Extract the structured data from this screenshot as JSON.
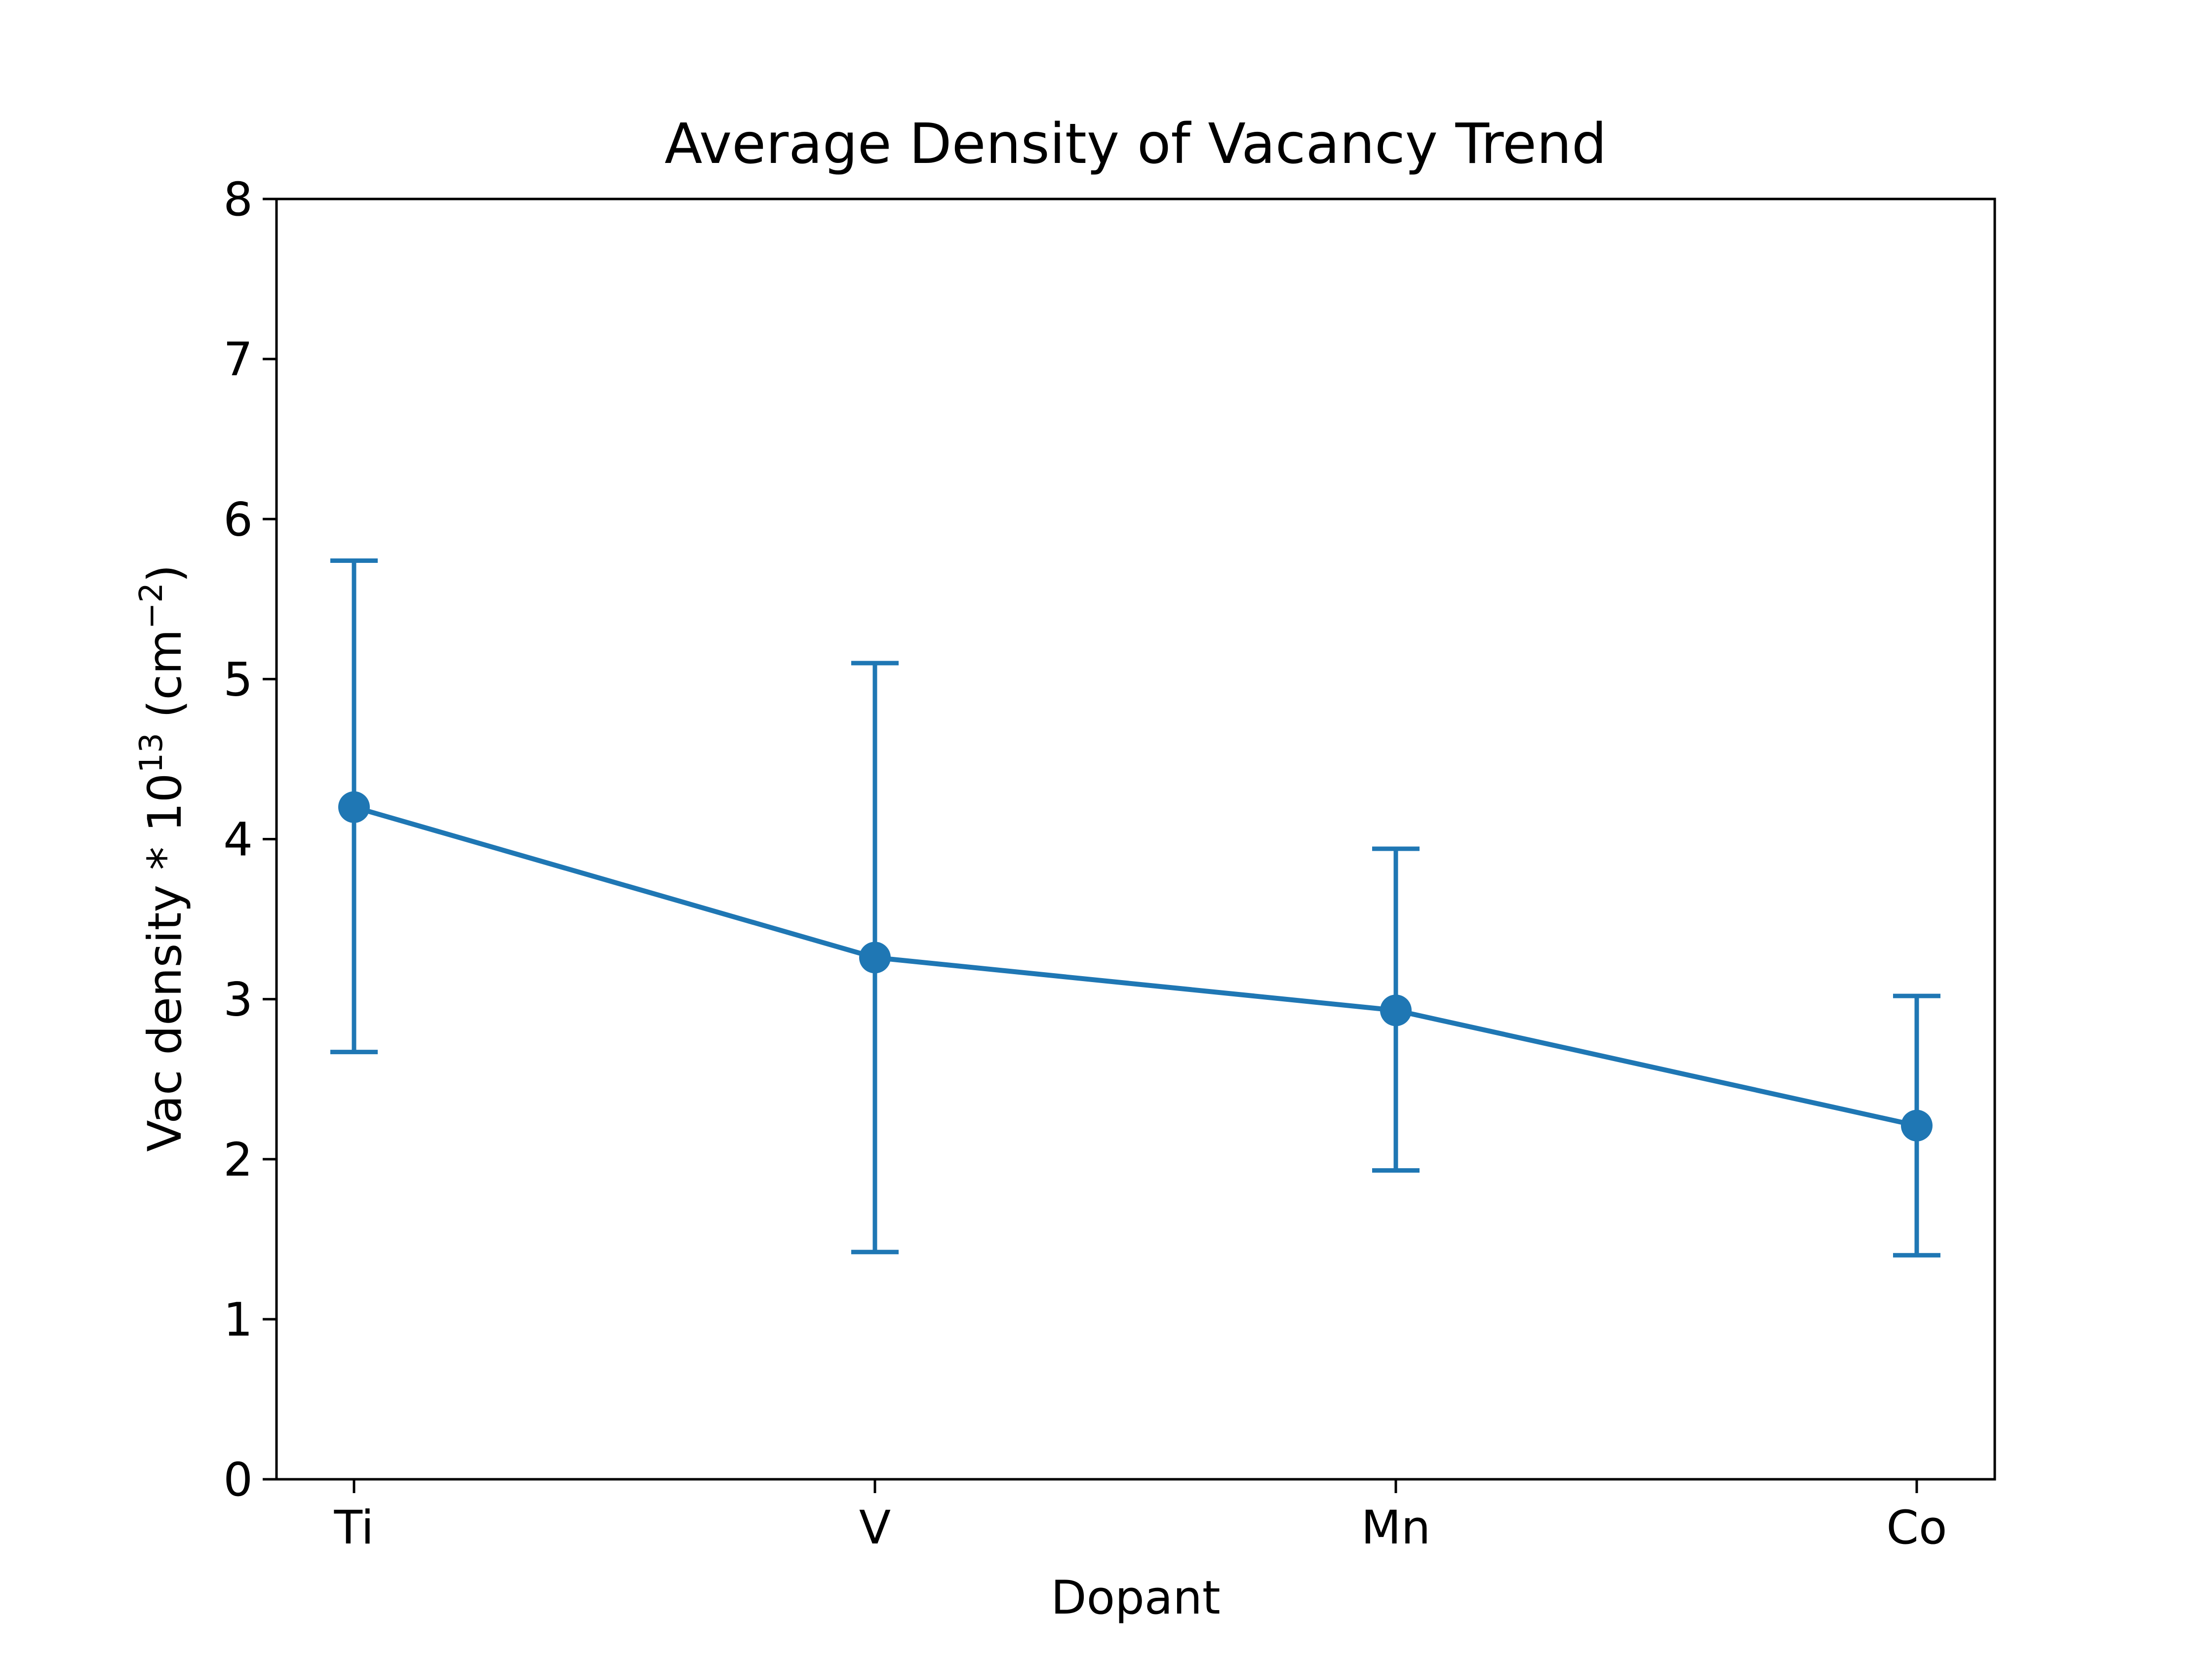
{
  "chart_data": {
    "type": "line",
    "title": "Average Density of Vacancy Trend",
    "xlabel": "Dopant",
    "ylabel_main": "Vac density * 10",
    "ylabel_exp": "13",
    "ylabel_unit_open": " (cm",
    "ylabel_unit_exp": "−2",
    "ylabel_unit_close": ")",
    "categories": [
      "Ti",
      "V",
      "Mn",
      "Co"
    ],
    "series": [
      {
        "values": [
          4.2,
          3.26,
          2.93,
          2.21
        ],
        "error_low": [
          2.67,
          1.42,
          1.93,
          1.4
        ],
        "error_high": [
          5.74,
          5.1,
          3.94,
          3.02
        ]
      }
    ],
    "ylim": [
      0,
      8
    ],
    "yticks": [
      "0",
      "1",
      "2",
      "3",
      "4",
      "5",
      "6",
      "7",
      "8"
    ],
    "grid": false,
    "legend": "none",
    "color": "#1f77b4"
  }
}
